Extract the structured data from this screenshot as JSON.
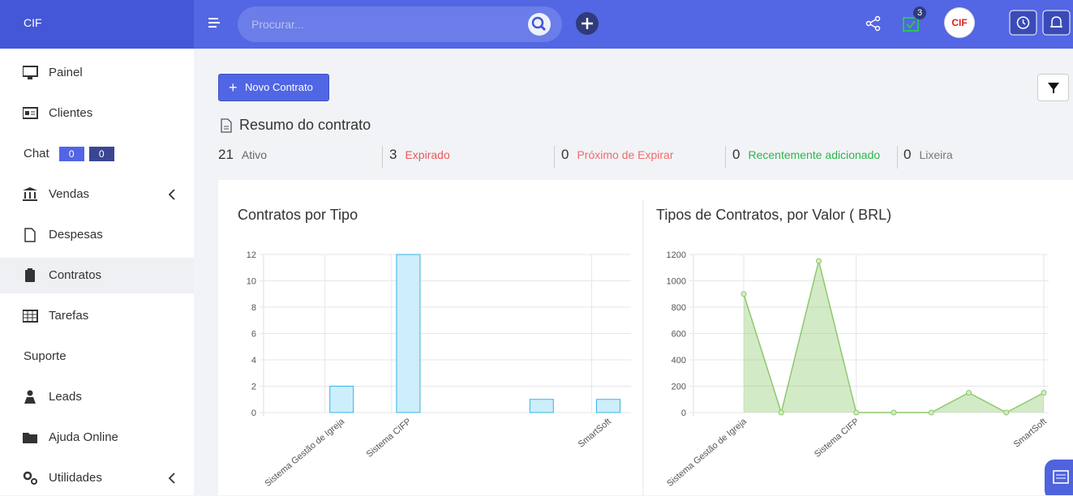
{
  "header": {
    "brand": "CIF",
    "search_placeholder": "Procurar...",
    "notification_count": "3",
    "avatar": "CIF"
  },
  "sidebar": {
    "items": [
      {
        "label": "Painel"
      },
      {
        "label": "Clientes"
      },
      {
        "label": "Chat",
        "badges": [
          "0",
          "0"
        ]
      },
      {
        "label": "Vendas"
      },
      {
        "label": "Despesas"
      },
      {
        "label": "Contratos"
      },
      {
        "label": "Tarefas"
      },
      {
        "label": "Suporte"
      },
      {
        "label": "Leads"
      },
      {
        "label": "Ajuda Online"
      },
      {
        "label": "Utilidades"
      }
    ]
  },
  "main": {
    "new_button": "Novo Contrato",
    "summary_title": "Resumo do contrato",
    "stats": [
      {
        "count": "21",
        "label": "Ativo"
      },
      {
        "count": "3",
        "label": "Expirado"
      },
      {
        "count": "0",
        "label": "Próximo de Expirar"
      },
      {
        "count": "0",
        "label": "Recentemente adicionado"
      },
      {
        "count": "0",
        "label": "Lixeira"
      }
    ]
  },
  "chart_data": [
    {
      "type": "bar",
      "title": "Contratos por Tipo",
      "categories": [
        null,
        null,
        "Sistema Gestão de Igreja",
        null,
        "Sistema CIFP",
        null,
        null,
        null,
        null,
        null,
        "SmartSoft"
      ],
      "values": [
        0,
        0,
        2,
        0,
        12,
        0,
        0,
        0,
        1,
        0,
        1
      ],
      "color": "#36b4e5",
      "ylim": [
        0,
        12
      ],
      "yticks": [
        0,
        2,
        4,
        6,
        8,
        10,
        12
      ],
      "grid": true
    },
    {
      "type": "area",
      "title": "Tipos de Contratos, por Valor ( BRL)",
      "categories": [
        "Sistema Gestão de Igreja",
        null,
        null,
        "Sistema CIFP",
        null,
        null,
        null,
        null,
        "SmartSoft"
      ],
      "values": [
        900,
        0,
        1150,
        0,
        0,
        0,
        150,
        0,
        150
      ],
      "color": "#8cc96b",
      "ylim": [
        0,
        1200
      ],
      "yticks": [
        0,
        200,
        400,
        600,
        800,
        1000,
        1200
      ],
      "grid": true
    }
  ]
}
